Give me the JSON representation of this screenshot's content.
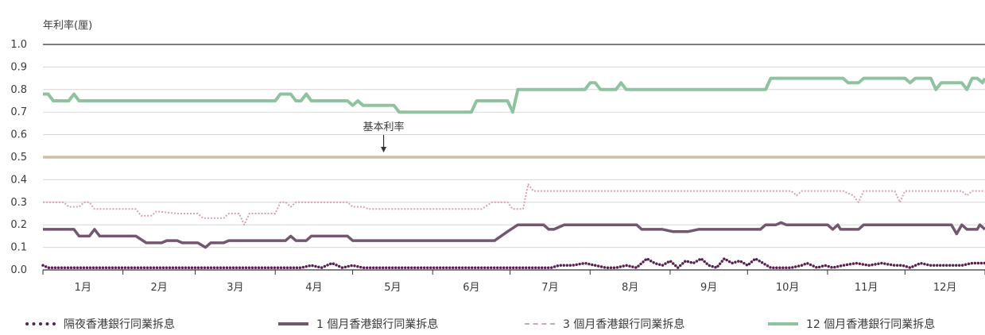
{
  "chart_data": {
    "type": "line",
    "ylabel": "年利率(厘)",
    "ylim": [
      0.0,
      1.0
    ],
    "yticks": [
      "0.0",
      "0.1",
      "0.2",
      "0.3",
      "0.4",
      "0.5",
      "0.6",
      "0.7",
      "0.8",
      "0.9",
      "1.0"
    ],
    "months": [
      "1月",
      "2月",
      "3月",
      "4月",
      "5月",
      "6月",
      "7月",
      "8月",
      "9月",
      "10月",
      "11月",
      "12月"
    ],
    "xlim": [
      0,
      365
    ],
    "annotation": {
      "text": "基本利率",
      "x": 132
    },
    "base_rate": {
      "name": "基本利率",
      "value": 0.5,
      "color": "#cfc0a8"
    },
    "series": [
      {
        "name": "隔夜香港銀行同業拆息",
        "color": "#5a2150",
        "style": "dotted",
        "points": [
          [
            0,
            0.02
          ],
          [
            2,
            0.01
          ],
          [
            50,
            0.01
          ],
          [
            100,
            0.01
          ],
          [
            104,
            0.02
          ],
          [
            108,
            0.01
          ],
          [
            112,
            0.03
          ],
          [
            116,
            0.01
          ],
          [
            120,
            0.02
          ],
          [
            124,
            0.01
          ],
          [
            140,
            0.01
          ],
          [
            150,
            0.01
          ],
          [
            160,
            0.01
          ],
          [
            170,
            0.01
          ],
          [
            180,
            0.01
          ],
          [
            190,
            0.01
          ],
          [
            197,
            0.01
          ],
          [
            200,
            0.02
          ],
          [
            205,
            0.02
          ],
          [
            210,
            0.03
          ],
          [
            214,
            0.02
          ],
          [
            218,
            0.01
          ],
          [
            222,
            0.01
          ],
          [
            226,
            0.02
          ],
          [
            230,
            0.01
          ],
          [
            234,
            0.05
          ],
          [
            237,
            0.03
          ],
          [
            240,
            0.02
          ],
          [
            243,
            0.04
          ],
          [
            246,
            0.01
          ],
          [
            249,
            0.04
          ],
          [
            252,
            0.03
          ],
          [
            255,
            0.05
          ],
          [
            258,
            0.02
          ],
          [
            261,
            0.01
          ],
          [
            264,
            0.05
          ],
          [
            267,
            0.03
          ],
          [
            270,
            0.04
          ],
          [
            273,
            0.02
          ],
          [
            276,
            0.05
          ],
          [
            279,
            0.03
          ],
          [
            282,
            0.01
          ],
          [
            286,
            0.01
          ],
          [
            290,
            0.01
          ],
          [
            294,
            0.02
          ],
          [
            296,
            0.03
          ],
          [
            300,
            0.01
          ],
          [
            303,
            0.02
          ],
          [
            306,
            0.01
          ],
          [
            310,
            0.02
          ],
          [
            315,
            0.03
          ],
          [
            320,
            0.02
          ],
          [
            325,
            0.03
          ],
          [
            330,
            0.02
          ],
          [
            333,
            0.02
          ],
          [
            336,
            0.01
          ],
          [
            340,
            0.03
          ],
          [
            344,
            0.02
          ],
          [
            350,
            0.02
          ],
          [
            356,
            0.02
          ],
          [
            360,
            0.03
          ],
          [
            365,
            0.03
          ]
        ]
      },
      {
        "name": "1 個月香港銀行同業拆息",
        "color": "#72576e",
        "style": "solid",
        "points": [
          [
            0,
            0.18
          ],
          [
            12,
            0.18
          ],
          [
            14,
            0.15
          ],
          [
            18,
            0.15
          ],
          [
            20,
            0.18
          ],
          [
            22,
            0.15
          ],
          [
            36,
            0.15
          ],
          [
            40,
            0.12
          ],
          [
            46,
            0.12
          ],
          [
            48,
            0.13
          ],
          [
            52,
            0.13
          ],
          [
            54,
            0.12
          ],
          [
            60,
            0.12
          ],
          [
            63,
            0.1
          ],
          [
            65,
            0.12
          ],
          [
            70,
            0.12
          ],
          [
            72,
            0.13
          ],
          [
            94,
            0.13
          ],
          [
            96,
            0.15
          ],
          [
            98,
            0.13
          ],
          [
            102,
            0.13
          ],
          [
            104,
            0.15
          ],
          [
            118,
            0.15
          ],
          [
            120,
            0.13
          ],
          [
            130,
            0.13
          ],
          [
            175,
            0.13
          ],
          [
            180,
            0.17
          ],
          [
            184,
            0.2
          ],
          [
            194,
            0.2
          ],
          [
            196,
            0.18
          ],
          [
            198,
            0.18
          ],
          [
            202,
            0.2
          ],
          [
            230,
            0.2
          ],
          [
            232,
            0.18
          ],
          [
            240,
            0.18
          ],
          [
            244,
            0.17
          ],
          [
            250,
            0.17
          ],
          [
            254,
            0.18
          ],
          [
            270,
            0.18
          ],
          [
            278,
            0.18
          ],
          [
            280,
            0.2
          ],
          [
            284,
            0.2
          ],
          [
            286,
            0.21
          ],
          [
            288,
            0.2
          ],
          [
            290,
            0.2
          ],
          [
            300,
            0.2
          ],
          [
            304,
            0.2
          ],
          [
            306,
            0.18
          ],
          [
            308,
            0.2
          ],
          [
            309,
            0.18
          ],
          [
            316,
            0.18
          ],
          [
            318,
            0.2
          ],
          [
            338,
            0.2
          ],
          [
            340,
            0.2
          ],
          [
            352,
            0.2
          ],
          [
            354,
            0.16
          ],
          [
            356,
            0.2
          ],
          [
            358,
            0.18
          ],
          [
            362,
            0.18
          ],
          [
            363,
            0.2
          ],
          [
            365,
            0.18
          ]
        ]
      },
      {
        "name": "3 個月香港銀行同業拆息",
        "color": "#d9a0b4",
        "style": "dashed",
        "points": [
          [
            0,
            0.3
          ],
          [
            8,
            0.3
          ],
          [
            10,
            0.28
          ],
          [
            14,
            0.28
          ],
          [
            16,
            0.3
          ],
          [
            18,
            0.3
          ],
          [
            20,
            0.27
          ],
          [
            36,
            0.27
          ],
          [
            38,
            0.24
          ],
          [
            42,
            0.24
          ],
          [
            44,
            0.26
          ],
          [
            52,
            0.25
          ],
          [
            60,
            0.25
          ],
          [
            62,
            0.23
          ],
          [
            70,
            0.23
          ],
          [
            72,
            0.25
          ],
          [
            76,
            0.25
          ],
          [
            78,
            0.2
          ],
          [
            80,
            0.25
          ],
          [
            90,
            0.25
          ],
          [
            92,
            0.3
          ],
          [
            94,
            0.3
          ],
          [
            96,
            0.28
          ],
          [
            98,
            0.3
          ],
          [
            112,
            0.3
          ],
          [
            118,
            0.3
          ],
          [
            120,
            0.28
          ],
          [
            124,
            0.28
          ],
          [
            126,
            0.27
          ],
          [
            170,
            0.27
          ],
          [
            174,
            0.3
          ],
          [
            180,
            0.3
          ],
          [
            182,
            0.27
          ],
          [
            184,
            0.27
          ],
          [
            186,
            0.27
          ],
          [
            188,
            0.38
          ],
          [
            190,
            0.35
          ],
          [
            214,
            0.35
          ],
          [
            240,
            0.35
          ],
          [
            270,
            0.35
          ],
          [
            290,
            0.35
          ],
          [
            292,
            0.33
          ],
          [
            294,
            0.35
          ],
          [
            310,
            0.35
          ],
          [
            314,
            0.33
          ],
          [
            316,
            0.3
          ],
          [
            318,
            0.35
          ],
          [
            330,
            0.35
          ],
          [
            332,
            0.3
          ],
          [
            334,
            0.35
          ],
          [
            350,
            0.35
          ],
          [
            356,
            0.35
          ],
          [
            358,
            0.33
          ],
          [
            360,
            0.35
          ],
          [
            365,
            0.35
          ]
        ]
      },
      {
        "name": "12 個月香港銀行同業拆息",
        "color": "#8fc3a0",
        "style": "solid",
        "points": [
          [
            0,
            0.78
          ],
          [
            2,
            0.78
          ],
          [
            4,
            0.75
          ],
          [
            10,
            0.75
          ],
          [
            12,
            0.78
          ],
          [
            14,
            0.75
          ],
          [
            60,
            0.75
          ],
          [
            90,
            0.75
          ],
          [
            92,
            0.78
          ],
          [
            96,
            0.78
          ],
          [
            98,
            0.75
          ],
          [
            100,
            0.75
          ],
          [
            102,
            0.78
          ],
          [
            104,
            0.75
          ],
          [
            118,
            0.75
          ],
          [
            120,
            0.73
          ],
          [
            122,
            0.75
          ],
          [
            124,
            0.73
          ],
          [
            136,
            0.73
          ],
          [
            138,
            0.7
          ],
          [
            160,
            0.7
          ],
          [
            166,
            0.7
          ],
          [
            168,
            0.75
          ],
          [
            180,
            0.75
          ],
          [
            182,
            0.7
          ],
          [
            184,
            0.8
          ],
          [
            200,
            0.8
          ],
          [
            210,
            0.8
          ],
          [
            212,
            0.83
          ],
          [
            214,
            0.83
          ],
          [
            216,
            0.8
          ],
          [
            222,
            0.8
          ],
          [
            224,
            0.83
          ],
          [
            226,
            0.8
          ],
          [
            250,
            0.8
          ],
          [
            280,
            0.8
          ],
          [
            282,
            0.85
          ],
          [
            310,
            0.85
          ],
          [
            312,
            0.83
          ],
          [
            316,
            0.83
          ],
          [
            318,
            0.85
          ],
          [
            334,
            0.85
          ],
          [
            336,
            0.83
          ],
          [
            338,
            0.85
          ],
          [
            344,
            0.85
          ],
          [
            346,
            0.8
          ],
          [
            348,
            0.83
          ],
          [
            356,
            0.83
          ],
          [
            358,
            0.8
          ],
          [
            360,
            0.85
          ],
          [
            362,
            0.85
          ],
          [
            364,
            0.83
          ],
          [
            365,
            0.85
          ]
        ]
      }
    ]
  }
}
